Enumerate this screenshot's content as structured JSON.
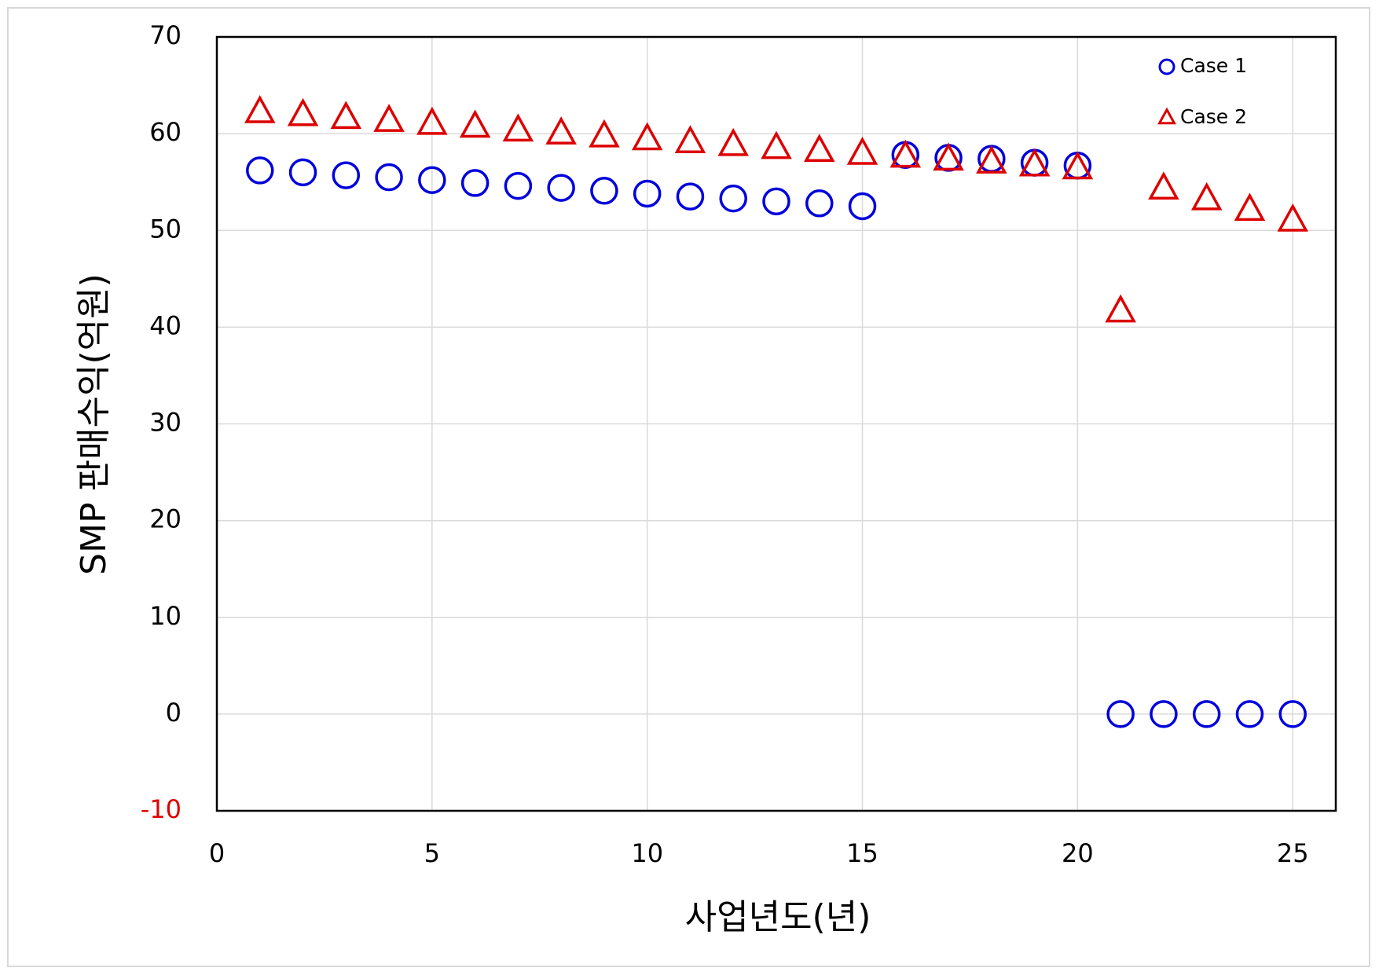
{
  "chart_data": {
    "type": "scatter",
    "x_label": "사업년도(년)",
    "y_label": "SMP 판매수익(억원)",
    "x": [
      1,
      2,
      3,
      4,
      5,
      6,
      7,
      8,
      9,
      10,
      11,
      12,
      13,
      14,
      15,
      16,
      17,
      18,
      19,
      20,
      21,
      22,
      23,
      24,
      25
    ],
    "series": [
      {
        "name": "Case 1",
        "color": "#0000dd",
        "marker": "circle",
        "values": [
          56.2,
          56.0,
          55.7,
          55.5,
          55.2,
          54.9,
          54.6,
          54.4,
          54.1,
          53.8,
          53.5,
          53.3,
          53.0,
          52.8,
          52.5,
          57.8,
          57.5,
          57.4,
          57.0,
          56.7,
          0,
          0,
          0,
          0,
          0
        ]
      },
      {
        "name": "Case 2",
        "color": "#dd0000",
        "marker": "triangle",
        "values": [
          62.2,
          61.9,
          61.6,
          61.3,
          61.0,
          60.7,
          60.3,
          60.0,
          59.7,
          59.4,
          59.1,
          58.8,
          58.5,
          58.2,
          57.9,
          57.6,
          57.3,
          57.0,
          56.7,
          56.4,
          41.6,
          54.3,
          53.2,
          52.1,
          51.0
        ]
      }
    ],
    "xlim": [
      0,
      26
    ],
    "xticks": [
      0,
      5,
      10,
      15,
      20,
      25
    ],
    "ylim": [
      -10,
      70
    ],
    "yticks": [
      -10,
      0,
      10,
      20,
      30,
      40,
      50,
      60,
      70
    ],
    "negative_tick_color": "#e00000",
    "grid": true,
    "legend": "top-right"
  }
}
